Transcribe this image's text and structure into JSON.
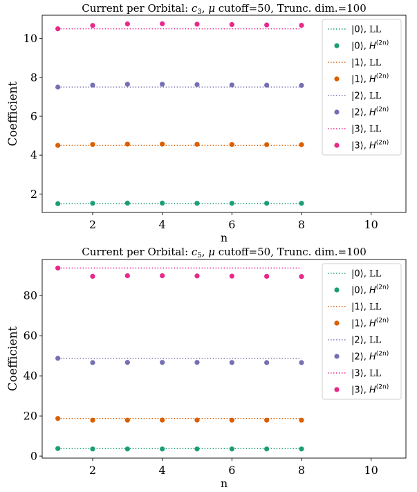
{
  "colors": {
    "series0": "#1b9e77",
    "series1": "#d95f02",
    "series2": "#7570b3",
    "series3": "#e7298a"
  },
  "chart_data": [
    {
      "type": "scatter",
      "title_parts": {
        "prefix": "Current per Orbital: ",
        "sym": "c",
        "sub": "3",
        "mid": ", ",
        "mu": "μ",
        "suffix": " cutoff=50, Trunc. dim.=100"
      },
      "xlabel": "n",
      "ylabel": "Coefficient",
      "xlim": [
        0.55,
        11.0
      ],
      "ylim": [
        1.05,
        11.2
      ],
      "xticks": [
        2,
        4,
        6,
        8,
        10
      ],
      "yticks": [
        2,
        4,
        6,
        8,
        10
      ],
      "legend_position": "top-right",
      "x": [
        1,
        2,
        3,
        4,
        5,
        6,
        7,
        8
      ],
      "series": [
        {
          "ket": "|0⟩",
          "ll_value": 1.5,
          "h_values": [
            1.5,
            1.52,
            1.53,
            1.53,
            1.52,
            1.52,
            1.52,
            1.52
          ],
          "color_key": "series0"
        },
        {
          "ket": "|1⟩",
          "ll_value": 4.5,
          "h_values": [
            4.5,
            4.55,
            4.57,
            4.57,
            4.56,
            4.55,
            4.54,
            4.54
          ],
          "color_key": "series1"
        },
        {
          "ket": "|2⟩",
          "ll_value": 7.5,
          "h_values": [
            7.5,
            7.6,
            7.65,
            7.65,
            7.63,
            7.61,
            7.6,
            7.59
          ],
          "color_key": "series2"
        },
        {
          "ket": "|3⟩",
          "ll_value": 10.5,
          "h_values": [
            10.5,
            10.67,
            10.75,
            10.76,
            10.74,
            10.72,
            10.7,
            10.68
          ],
          "color_key": "series3"
        }
      ]
    },
    {
      "type": "scatter",
      "title_parts": {
        "prefix": "Current per Orbital: ",
        "sym": "c",
        "sub": "5",
        "mid": ", ",
        "mu": "μ",
        "suffix": " cutoff=50, Trunc. dim.=100"
      },
      "xlabel": "n",
      "ylabel": "Coefficient",
      "xlim": [
        0.55,
        11.0
      ],
      "ylim": [
        -1.0,
        98.0
      ],
      "xticks": [
        2,
        4,
        6,
        8,
        10
      ],
      "yticks": [
        0,
        20,
        40,
        60,
        80
      ],
      "legend_position": "top-right",
      "x": [
        1,
        2,
        3,
        4,
        5,
        6,
        7,
        8
      ],
      "series": [
        {
          "ket": "|0⟩",
          "ll_value": 3.75,
          "h_values": [
            3.75,
            3.55,
            3.55,
            3.55,
            3.55,
            3.55,
            3.55,
            3.55
          ],
          "color_key": "series0"
        },
        {
          "ket": "|1⟩",
          "ll_value": 18.75,
          "h_values": [
            18.75,
            17.9,
            17.9,
            17.95,
            17.95,
            17.9,
            17.9,
            17.9
          ],
          "color_key": "series1"
        },
        {
          "ket": "|2⟩",
          "ll_value": 48.75,
          "h_values": [
            48.75,
            46.6,
            46.7,
            46.7,
            46.7,
            46.65,
            46.6,
            46.6
          ],
          "color_key": "series2"
        },
        {
          "ket": "|3⟩",
          "ll_value": 93.75,
          "h_values": [
            93.75,
            89.6,
            89.9,
            89.9,
            89.8,
            89.7,
            89.6,
            89.5
          ],
          "color_key": "series3"
        }
      ]
    }
  ],
  "legend_labels": {
    "ll": "LL",
    "h_sym": "H",
    "h_sup": "(2n)"
  }
}
